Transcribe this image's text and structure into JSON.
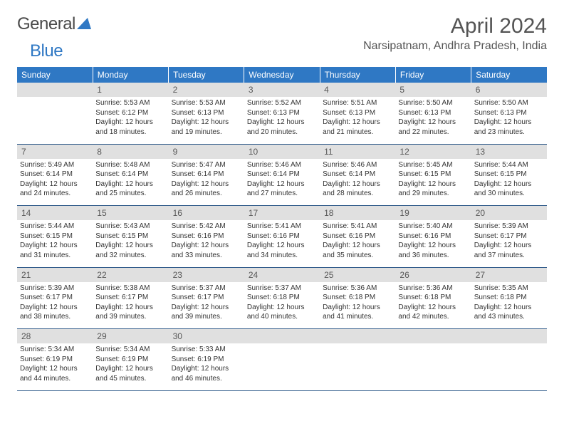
{
  "logo": {
    "text1": "General",
    "text2": "Blue"
  },
  "title": "April 2024",
  "location": "Narsipatnam, Andhra Pradesh, India",
  "colors": {
    "header_bg": "#2f78c4",
    "header_fg": "#ffffff",
    "daynum_bg": "#e0e0e0",
    "daynum_fg": "#585858",
    "rule": "#2f5a8a",
    "title_color": "#545454"
  },
  "weekdays": [
    "Sunday",
    "Monday",
    "Tuesday",
    "Wednesday",
    "Thursday",
    "Friday",
    "Saturday"
  ],
  "weeks": [
    {
      "nums": [
        "",
        "1",
        "2",
        "3",
        "4",
        "5",
        "6"
      ],
      "cells": [
        null,
        {
          "sunrise": "5:53 AM",
          "sunset": "6:12 PM",
          "dl": "12 hours and 18 minutes."
        },
        {
          "sunrise": "5:53 AM",
          "sunset": "6:13 PM",
          "dl": "12 hours and 19 minutes."
        },
        {
          "sunrise": "5:52 AM",
          "sunset": "6:13 PM",
          "dl": "12 hours and 20 minutes."
        },
        {
          "sunrise": "5:51 AM",
          "sunset": "6:13 PM",
          "dl": "12 hours and 21 minutes."
        },
        {
          "sunrise": "5:50 AM",
          "sunset": "6:13 PM",
          "dl": "12 hours and 22 minutes."
        },
        {
          "sunrise": "5:50 AM",
          "sunset": "6:13 PM",
          "dl": "12 hours and 23 minutes."
        }
      ]
    },
    {
      "nums": [
        "7",
        "8",
        "9",
        "10",
        "11",
        "12",
        "13"
      ],
      "cells": [
        {
          "sunrise": "5:49 AM",
          "sunset": "6:14 PM",
          "dl": "12 hours and 24 minutes."
        },
        {
          "sunrise": "5:48 AM",
          "sunset": "6:14 PM",
          "dl": "12 hours and 25 minutes."
        },
        {
          "sunrise": "5:47 AM",
          "sunset": "6:14 PM",
          "dl": "12 hours and 26 minutes."
        },
        {
          "sunrise": "5:46 AM",
          "sunset": "6:14 PM",
          "dl": "12 hours and 27 minutes."
        },
        {
          "sunrise": "5:46 AM",
          "sunset": "6:14 PM",
          "dl": "12 hours and 28 minutes."
        },
        {
          "sunrise": "5:45 AM",
          "sunset": "6:15 PM",
          "dl": "12 hours and 29 minutes."
        },
        {
          "sunrise": "5:44 AM",
          "sunset": "6:15 PM",
          "dl": "12 hours and 30 minutes."
        }
      ]
    },
    {
      "nums": [
        "14",
        "15",
        "16",
        "17",
        "18",
        "19",
        "20"
      ],
      "cells": [
        {
          "sunrise": "5:44 AM",
          "sunset": "6:15 PM",
          "dl": "12 hours and 31 minutes."
        },
        {
          "sunrise": "5:43 AM",
          "sunset": "6:15 PM",
          "dl": "12 hours and 32 minutes."
        },
        {
          "sunrise": "5:42 AM",
          "sunset": "6:16 PM",
          "dl": "12 hours and 33 minutes."
        },
        {
          "sunrise": "5:41 AM",
          "sunset": "6:16 PM",
          "dl": "12 hours and 34 minutes."
        },
        {
          "sunrise": "5:41 AM",
          "sunset": "6:16 PM",
          "dl": "12 hours and 35 minutes."
        },
        {
          "sunrise": "5:40 AM",
          "sunset": "6:16 PM",
          "dl": "12 hours and 36 minutes."
        },
        {
          "sunrise": "5:39 AM",
          "sunset": "6:17 PM",
          "dl": "12 hours and 37 minutes."
        }
      ]
    },
    {
      "nums": [
        "21",
        "22",
        "23",
        "24",
        "25",
        "26",
        "27"
      ],
      "cells": [
        {
          "sunrise": "5:39 AM",
          "sunset": "6:17 PM",
          "dl": "12 hours and 38 minutes."
        },
        {
          "sunrise": "5:38 AM",
          "sunset": "6:17 PM",
          "dl": "12 hours and 39 minutes."
        },
        {
          "sunrise": "5:37 AM",
          "sunset": "6:17 PM",
          "dl": "12 hours and 39 minutes."
        },
        {
          "sunrise": "5:37 AM",
          "sunset": "6:18 PM",
          "dl": "12 hours and 40 minutes."
        },
        {
          "sunrise": "5:36 AM",
          "sunset": "6:18 PM",
          "dl": "12 hours and 41 minutes."
        },
        {
          "sunrise": "5:36 AM",
          "sunset": "6:18 PM",
          "dl": "12 hours and 42 minutes."
        },
        {
          "sunrise": "5:35 AM",
          "sunset": "6:18 PM",
          "dl": "12 hours and 43 minutes."
        }
      ]
    },
    {
      "nums": [
        "28",
        "29",
        "30",
        "",
        "",
        "",
        ""
      ],
      "cells": [
        {
          "sunrise": "5:34 AM",
          "sunset": "6:19 PM",
          "dl": "12 hours and 44 minutes."
        },
        {
          "sunrise": "5:34 AM",
          "sunset": "6:19 PM",
          "dl": "12 hours and 45 minutes."
        },
        {
          "sunrise": "5:33 AM",
          "sunset": "6:19 PM",
          "dl": "12 hours and 46 minutes."
        },
        null,
        null,
        null,
        null
      ]
    }
  ]
}
